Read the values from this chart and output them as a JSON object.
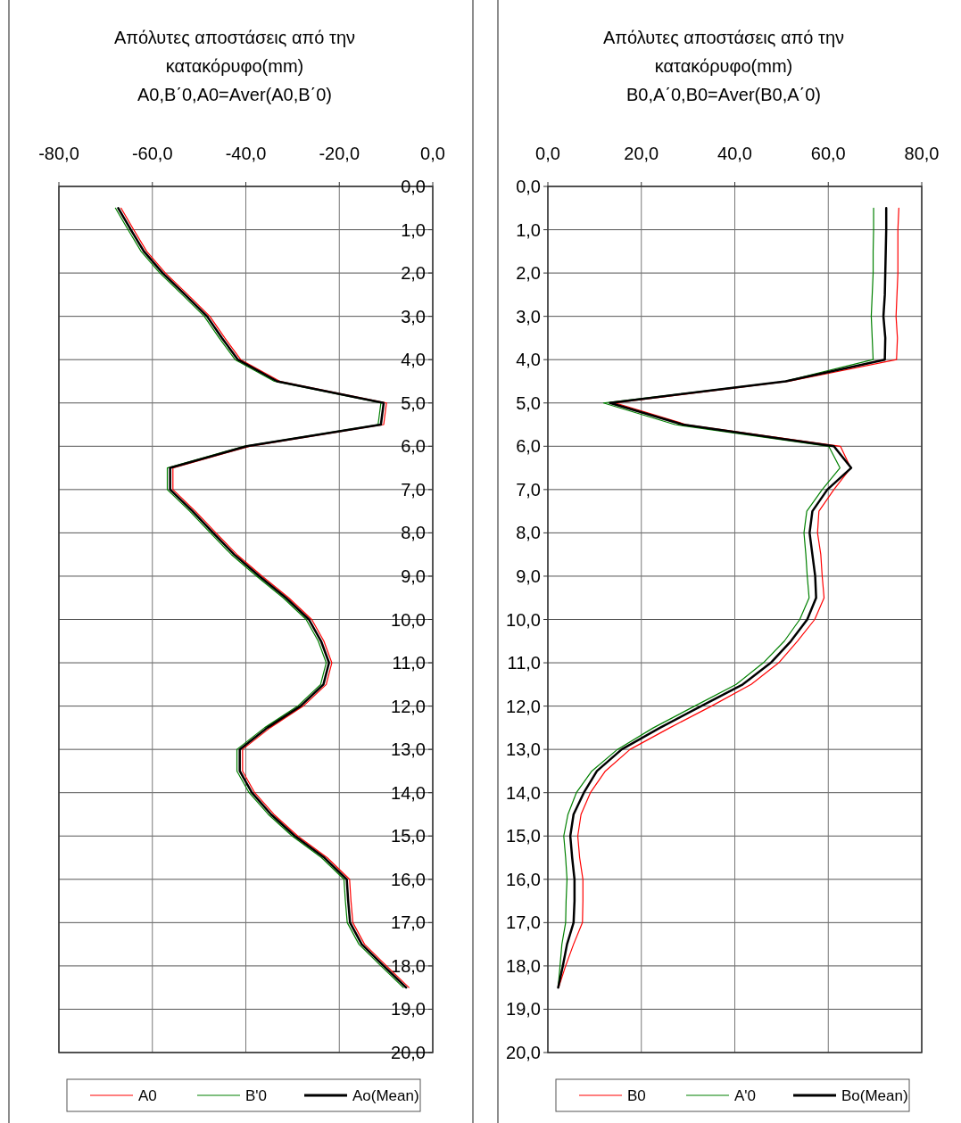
{
  "chart_data": [
    {
      "type": "line",
      "title": "Απόλυτες αποστάσεις από την κατακόρυφο(mm)",
      "subtitle": "A0,B΄0,A0=Aver(A0,B΄0)",
      "xlim": [
        -80,
        0
      ],
      "xticks": [
        {
          "value": -80,
          "label": "-80,0"
        },
        {
          "value": -60,
          "label": "-60,0"
        },
        {
          "value": -40,
          "label": "-40,0"
        },
        {
          "value": -20,
          "label": "-20,0"
        },
        {
          "value": 0,
          "label": "0,0"
        }
      ],
      "ylim": [
        20,
        0
      ],
      "yticks": [
        {
          "value": 0,
          "label": "0,0"
        },
        {
          "value": 1,
          "label": "1,0"
        },
        {
          "value": 2,
          "label": "2,0"
        },
        {
          "value": 3,
          "label": "3,0"
        },
        {
          "value": 4,
          "label": "4,0"
        },
        {
          "value": 5,
          "label": "5,0"
        },
        {
          "value": 6,
          "label": "6,0"
        },
        {
          "value": 7,
          "label": "7,0"
        },
        {
          "value": 8,
          "label": "8,0"
        },
        {
          "value": 9,
          "label": "9,0"
        },
        {
          "value": 10,
          "label": "10,0"
        },
        {
          "value": 11,
          "label": "11,0"
        },
        {
          "value": 12,
          "label": "12,0"
        },
        {
          "value": 13,
          "label": "13,0"
        },
        {
          "value": 14,
          "label": "14,0"
        },
        {
          "value": 15,
          "label": "15,0"
        },
        {
          "value": 16,
          "label": "16,0"
        },
        {
          "value": 17,
          "label": "17,0"
        },
        {
          "value": 18,
          "label": "18,0"
        },
        {
          "value": 19,
          "label": "19,0"
        },
        {
          "value": 20,
          "label": "20,0"
        }
      ],
      "grid": true,
      "legend": "bottom",
      "marker": "none",
      "line_style": "solid",
      "series": [
        {
          "name": "A0",
          "color": "#ff0000",
          "x": [
            -66.7,
            -64.0,
            -61.2,
            -57.2,
            -52.4,
            -47.7,
            -44.5,
            -41.1,
            -32.7,
            -9.9,
            -10.5,
            -39.2,
            -55.6,
            -55.6,
            -50.8,
            -46.4,
            -41.9,
            -36.5,
            -30.8,
            -25.9,
            -23.3,
            -21.6,
            -22.8,
            -27.7,
            -34.8,
            -40.7,
            -40.7,
            -38.1,
            -34.0,
            -28.9,
            -22.6,
            -17.8,
            -17.5,
            -17.1,
            -14.6,
            -9.9,
            -5.1
          ],
          "values": [
            0.5,
            1,
            1.5,
            2,
            2.5,
            3,
            3.5,
            4,
            4.5,
            5,
            5.5,
            6,
            6.5,
            7,
            7.5,
            8,
            8.5,
            9,
            9.5,
            10,
            10.5,
            11,
            11.5,
            12,
            12.5,
            13,
            13.5,
            14,
            14.5,
            15,
            15.5,
            16,
            16.5,
            17,
            17.5,
            18,
            18.5
          ]
        },
        {
          "name": "B'0",
          "color": "#008000",
          "x": [
            -67.9,
            -65.2,
            -62.4,
            -58.4,
            -53.6,
            -48.9,
            -45.7,
            -42.3,
            -33.9,
            -11.1,
            -11.7,
            -40.4,
            -56.8,
            -56.8,
            -52.0,
            -47.6,
            -43.1,
            -37.7,
            -32.0,
            -27.1,
            -24.5,
            -22.8,
            -24.0,
            -28.9,
            -36.0,
            -41.9,
            -41.9,
            -39.3,
            -35.2,
            -30.1,
            -23.8,
            -19.0,
            -18.7,
            -18.3,
            -15.8,
            -11.1,
            -6.3
          ],
          "values": [
            0.5,
            1,
            1.5,
            2,
            2.5,
            3,
            3.5,
            4,
            4.5,
            5,
            5.5,
            6,
            6.5,
            7,
            7.5,
            8,
            8.5,
            9,
            9.5,
            10,
            10.5,
            11,
            11.5,
            12,
            12.5,
            13,
            13.5,
            14,
            14.5,
            15,
            15.5,
            16,
            16.5,
            17,
            17.5,
            18,
            18.5
          ]
        },
        {
          "name": "Ao(Mean)",
          "color": "#000000",
          "x": [
            -67.3,
            -64.6,
            -61.8,
            -57.8,
            -53.0,
            -48.3,
            -45.1,
            -41.7,
            -33.3,
            -10.5,
            -11.1,
            -39.8,
            -56.2,
            -56.2,
            -51.4,
            -47.0,
            -42.5,
            -37.1,
            -31.4,
            -26.5,
            -23.9,
            -22.2,
            -23.4,
            -28.3,
            -35.4,
            -41.3,
            -41.3,
            -38.7,
            -34.6,
            -29.5,
            -23.2,
            -18.4,
            -18.1,
            -17.7,
            -15.2,
            -10.5,
            -5.7
          ],
          "values": [
            0.5,
            1,
            1.5,
            2,
            2.5,
            3,
            3.5,
            4,
            4.5,
            5,
            5.5,
            6,
            6.5,
            7,
            7.5,
            8,
            8.5,
            9,
            9.5,
            10,
            10.5,
            11,
            11.5,
            12,
            12.5,
            13,
            13.5,
            14,
            14.5,
            15,
            15.5,
            16,
            16.5,
            17,
            17.5,
            18,
            18.5
          ]
        }
      ]
    },
    {
      "type": "line",
      "title": "Απόλυτες αποστάσεις από την κατακόρυφο(mm)",
      "subtitle": "B0,A΄0,B0=Aver(B0,A΄0)",
      "xlim": [
        0,
        80
      ],
      "xticks": [
        {
          "value": 0,
          "label": "0,0"
        },
        {
          "value": 20,
          "label": "20,0"
        },
        {
          "value": 40,
          "label": "40,0"
        },
        {
          "value": 60,
          "label": "60,0"
        },
        {
          "value": 80,
          "label": "80,0"
        }
      ],
      "ylim": [
        20,
        0
      ],
      "yticks": [
        {
          "value": 0,
          "label": "0,0"
        },
        {
          "value": 1,
          "label": "1,0"
        },
        {
          "value": 2,
          "label": "2,0"
        },
        {
          "value": 3,
          "label": "3,0"
        },
        {
          "value": 4,
          "label": "4,0"
        },
        {
          "value": 5,
          "label": "5,0"
        },
        {
          "value": 6,
          "label": "6,0"
        },
        {
          "value": 7,
          "label": "7,0"
        },
        {
          "value": 8,
          "label": "8,0"
        },
        {
          "value": 9,
          "label": "9,0"
        },
        {
          "value": 10,
          "label": "10,0"
        },
        {
          "value": 11,
          "label": "11,0"
        },
        {
          "value": 12,
          "label": "12,0"
        },
        {
          "value": 13,
          "label": "13,0"
        },
        {
          "value": 14,
          "label": "14,0"
        },
        {
          "value": 15,
          "label": "15,0"
        },
        {
          "value": 16,
          "label": "16,0"
        },
        {
          "value": 17,
          "label": "17,0"
        },
        {
          "value": 18,
          "label": "18,0"
        },
        {
          "value": 19,
          "label": "19,0"
        },
        {
          "value": 20,
          "label": "20,0"
        }
      ],
      "grid": true,
      "legend": "bottom",
      "marker": "none",
      "line_style": "solid",
      "series": [
        {
          "name": "B0",
          "color": "#ff0000",
          "x": [
            75.1,
            74.9,
            74.9,
            74.9,
            74.7,
            74.5,
            74.8,
            74.6,
            51.6,
            14.4,
            29.6,
            62.6,
            64.8,
            61.2,
            58.0,
            57.7,
            58.4,
            58.7,
            59.1,
            57.1,
            53.4,
            49.4,
            43.5,
            35.0,
            26.1,
            17.6,
            12.3,
            9.1,
            7.1,
            6.4,
            6.8,
            7.5,
            7.5,
            7.4,
            5.5,
            3.8,
            2.3
          ],
          "values": [
            0.5,
            1,
            1.5,
            2,
            2.5,
            3,
            3.5,
            4,
            4.5,
            5,
            5.5,
            6,
            6.5,
            7,
            7.5,
            8,
            8.5,
            9,
            9.5,
            10,
            10.5,
            11,
            11.5,
            12,
            12.5,
            13,
            13.5,
            14,
            14.5,
            15,
            15.5,
            16,
            16.5,
            17,
            17.5,
            18,
            18.5
          ]
        },
        {
          "name": "A'0",
          "color": "#008000",
          "x": [
            69.7,
            69.7,
            69.6,
            69.6,
            69.4,
            69.2,
            69.4,
            69.6,
            50.6,
            11.9,
            27.2,
            60.1,
            62.5,
            58.7,
            55.4,
            54.8,
            55.2,
            55.5,
            55.9,
            53.9,
            50.6,
            46.1,
            40.3,
            31.4,
            22.6,
            14.9,
            9.4,
            6.1,
            4.3,
            3.4,
            3.8,
            4.1,
            3.9,
            3.8,
            3.0,
            2.6,
            2.2
          ],
          "values": [
            0.5,
            1,
            1.5,
            2,
            2.5,
            3,
            3.5,
            4,
            4.5,
            5,
            5.5,
            6,
            6.5,
            7,
            7.5,
            8,
            8.5,
            9,
            9.5,
            10,
            10.5,
            11,
            11.5,
            12,
            12.5,
            13,
            13.5,
            14,
            14.5,
            15,
            15.5,
            16,
            16.5,
            17,
            17.5,
            18,
            18.5
          ]
        },
        {
          "name": "Bo(Mean)",
          "color": "#000000",
          "x": [
            72.4,
            72.4,
            72.3,
            72.2,
            72.1,
            71.8,
            72.2,
            72.1,
            50.9,
            13.3,
            28.9,
            61.2,
            64.9,
            59.8,
            56.6,
            56.0,
            56.6,
            57.2,
            57.4,
            55.5,
            52.0,
            47.7,
            41.7,
            32.8,
            24.0,
            15.8,
            10.5,
            7.7,
            5.5,
            4.8,
            5.2,
            5.7,
            5.7,
            5.5,
            4.1,
            3.2,
            2.2
          ],
          "values": [
            0.5,
            1,
            1.5,
            2,
            2.5,
            3,
            3.5,
            4,
            4.5,
            5,
            5.5,
            6,
            6.5,
            7,
            7.5,
            8,
            8.5,
            9,
            9.5,
            10,
            10.5,
            11,
            11.5,
            12,
            12.5,
            13,
            13.5,
            14,
            14.5,
            15,
            15.5,
            16,
            16.5,
            17,
            17.5,
            18,
            18.5
          ]
        }
      ]
    }
  ]
}
